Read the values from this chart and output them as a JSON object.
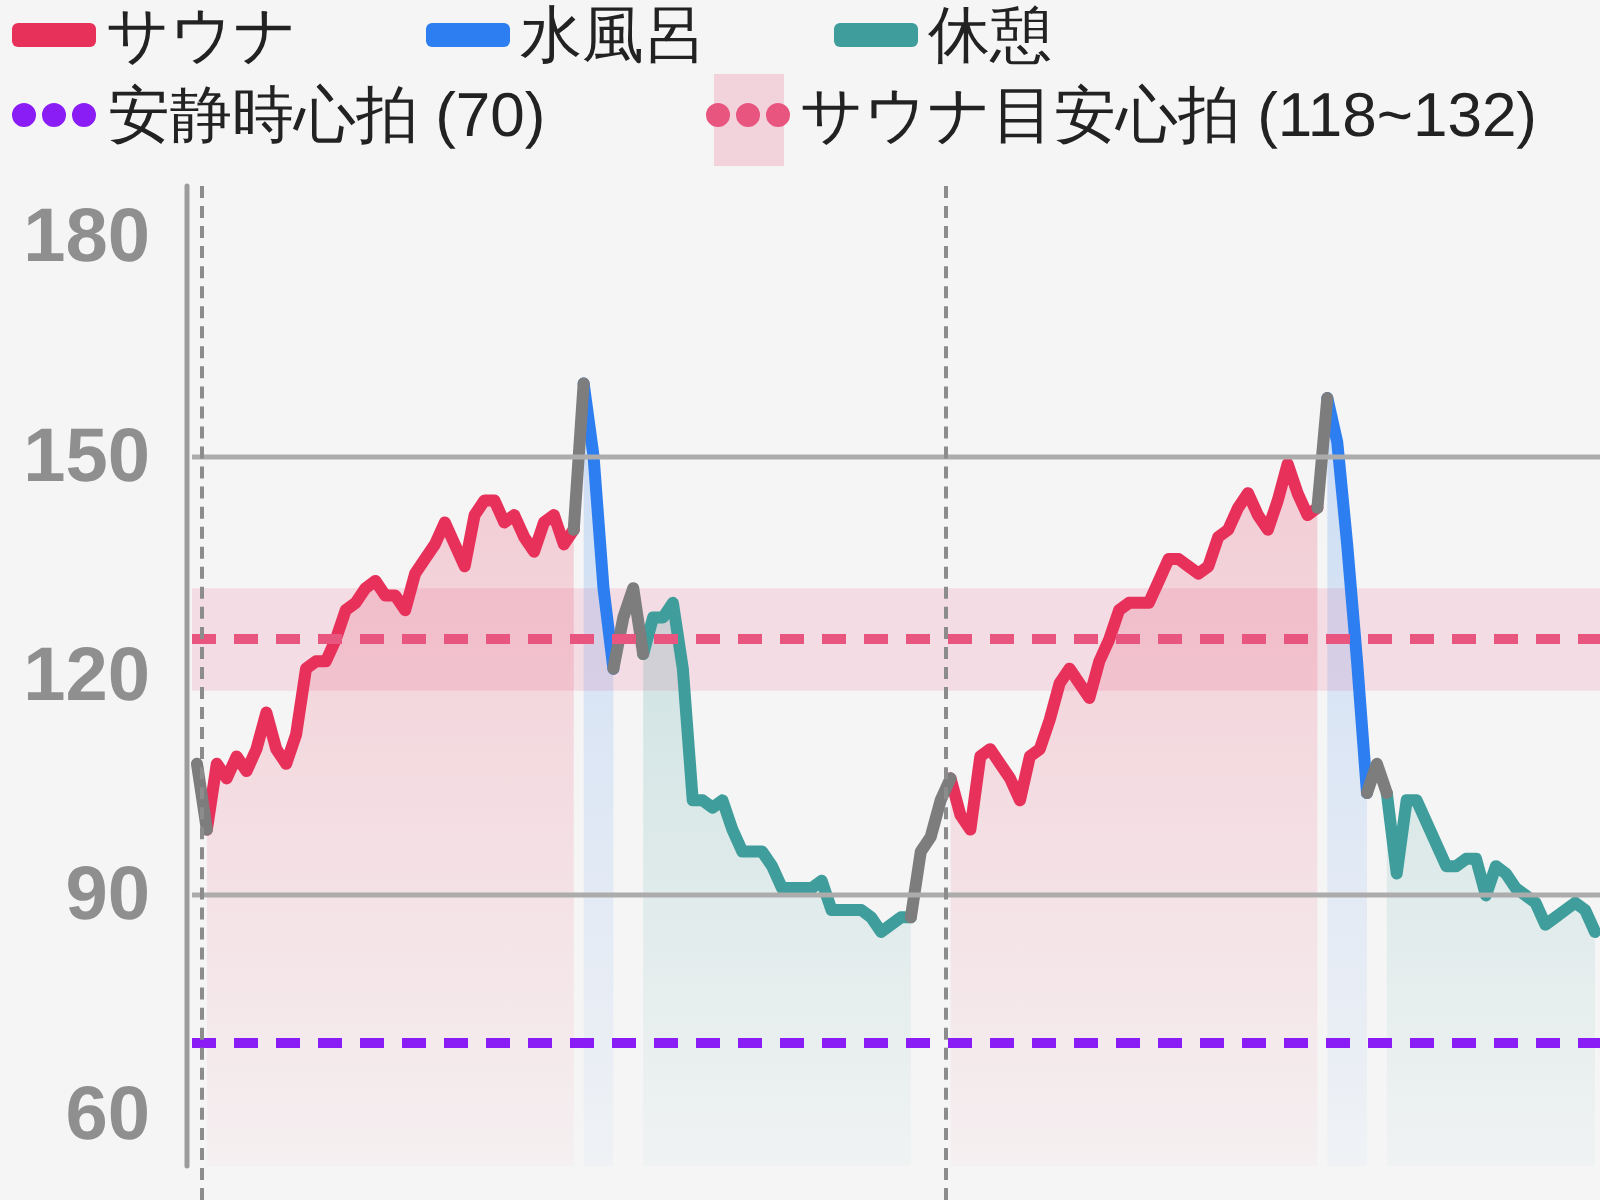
{
  "chart_data": {
    "type": "area",
    "categories": [
      null,
      null,
      null,
      null,
      null,
      null,
      null,
      null,
      null,
      null,
      null,
      null,
      null,
      null,
      null,
      null,
      null,
      null,
      null,
      null,
      null,
      null,
      null,
      null,
      null,
      null,
      null,
      null,
      null,
      null,
      null,
      null,
      null,
      null,
      null,
      null,
      null,
      null,
      null,
      null,
      null,
      null,
      null,
      null,
      null,
      null,
      null,
      null,
      null,
      null,
      null,
      null,
      null,
      null,
      null,
      null,
      null,
      null,
      null,
      null,
      null,
      null,
      null,
      null,
      null,
      null,
      null,
      null,
      null,
      null,
      null,
      null,
      null,
      null,
      null,
      null,
      null,
      null,
      null,
      null,
      null,
      null,
      null,
      null,
      null,
      null,
      null,
      null,
      null,
      null,
      null,
      null,
      null,
      null,
      null,
      null,
      null,
      null,
      null,
      null,
      null,
      null,
      null,
      null,
      null,
      null,
      null,
      null,
      null,
      null,
      null,
      null,
      null,
      null,
      null,
      null,
      null,
      null,
      null,
      null,
      null,
      null,
      null,
      null,
      null,
      null,
      null,
      null,
      null,
      null,
      null,
      null,
      null,
      null,
      null,
      null,
      null,
      null,
      null,
      null,
      null,
      null
    ],
    "series": [
      {
        "name": "サウナ",
        "color": "#e8315a",
        "type": "area",
        "values": [
          null,
          99,
          108,
          106,
          109,
          107,
          110,
          115,
          110,
          108,
          112,
          121,
          122,
          122,
          125,
          129,
          130,
          132,
          133,
          131,
          131,
          129,
          134,
          136,
          138,
          141,
          138,
          135,
          142,
          144,
          144,
          141,
          142,
          139,
          137,
          141,
          142,
          138,
          140,
          null,
          null,
          null,
          null,
          null,
          null,
          null,
          null,
          null,
          null,
          null,
          null,
          null,
          null,
          null,
          null,
          null,
          null,
          null,
          null,
          null,
          null,
          null,
          null,
          null,
          null,
          null,
          null,
          null,
          null,
          null,
          null,
          null,
          null,
          null,
          null,
          null,
          106,
          101,
          99,
          109,
          110,
          108,
          106,
          103,
          109,
          110,
          114,
          119,
          121,
          119,
          117,
          122,
          125,
          129,
          130,
          130,
          130,
          133,
          136,
          136,
          135,
          134,
          135,
          139,
          140,
          143,
          145,
          142,
          140,
          144,
          149,
          145,
          142,
          143,
          null,
          null,
          null,
          null,
          null,
          null,
          null,
          null,
          null,
          null,
          null,
          null,
          null,
          null,
          null,
          null,
          null,
          null,
          null,
          null,
          null,
          null,
          null,
          null,
          null,
          null,
          null,
          null
        ]
      },
      {
        "name": "水風呂",
        "color": "#2d7ef0",
        "type": "area",
        "values": [
          null,
          null,
          null,
          null,
          null,
          null,
          null,
          null,
          null,
          null,
          null,
          null,
          null,
          null,
          null,
          null,
          null,
          null,
          null,
          null,
          null,
          null,
          null,
          null,
          null,
          null,
          null,
          null,
          null,
          null,
          null,
          null,
          null,
          null,
          null,
          null,
          null,
          null,
          null,
          160,
          150,
          132,
          121,
          null,
          null,
          null,
          null,
          null,
          null,
          null,
          null,
          null,
          null,
          null,
          null,
          null,
          null,
          null,
          null,
          null,
          null,
          null,
          null,
          null,
          null,
          null,
          null,
          null,
          null,
          null,
          null,
          null,
          null,
          null,
          null,
          null,
          null,
          null,
          null,
          null,
          null,
          null,
          null,
          null,
          null,
          null,
          null,
          null,
          null,
          null,
          null,
          null,
          null,
          null,
          null,
          null,
          null,
          null,
          null,
          null,
          null,
          null,
          null,
          null,
          null,
          null,
          null,
          null,
          null,
          null,
          null,
          null,
          null,
          null,
          158,
          152,
          138,
          122,
          104,
          null,
          null,
          null,
          null,
          null,
          null,
          null,
          null,
          null,
          null,
          null,
          null,
          null,
          null,
          null,
          null,
          null,
          null,
          null,
          null,
          null,
          null,
          null
        ]
      },
      {
        "name": "休憩",
        "color": "#3f9d9c",
        "type": "area",
        "values": [
          null,
          null,
          null,
          null,
          null,
          null,
          null,
          null,
          null,
          null,
          null,
          null,
          null,
          null,
          null,
          null,
          null,
          null,
          null,
          null,
          null,
          null,
          null,
          null,
          null,
          null,
          null,
          null,
          null,
          null,
          null,
          null,
          null,
          null,
          null,
          null,
          null,
          null,
          null,
          null,
          null,
          null,
          null,
          null,
          null,
          123,
          128,
          128,
          130,
          121,
          103,
          103,
          102,
          103,
          99,
          96,
          96,
          96,
          94,
          91,
          91,
          91,
          91,
          92,
          88,
          88,
          88,
          88,
          87,
          85,
          86,
          87,
          87,
          null,
          null,
          null,
          null,
          null,
          null,
          null,
          null,
          null,
          null,
          null,
          null,
          null,
          null,
          null,
          null,
          null,
          null,
          null,
          null,
          null,
          null,
          null,
          null,
          null,
          null,
          null,
          null,
          null,
          null,
          null,
          null,
          null,
          null,
          null,
          null,
          null,
          null,
          null,
          null,
          null,
          null,
          null,
          null,
          null,
          null,
          null,
          104,
          93,
          103,
          103,
          100,
          97,
          94,
          94,
          95,
          95,
          90,
          94,
          93,
          91,
          90,
          89,
          86,
          87,
          88,
          89,
          88,
          85
        ]
      },
      {
        "color": "#7d7d7d",
        "type": "line",
        "values": [
          108,
          99,
          null,
          null,
          null,
          null,
          null,
          null,
          null,
          null,
          null,
          null,
          null,
          null,
          null,
          null,
          null,
          null,
          null,
          null,
          null,
          null,
          null,
          null,
          null,
          null,
          null,
          null,
          null,
          null,
          null,
          null,
          null,
          null,
          null,
          null,
          null,
          null,
          140,
          160,
          null,
          null,
          121,
          128,
          132,
          123,
          null,
          null,
          null,
          null,
          null,
          null,
          null,
          null,
          null,
          null,
          null,
          null,
          null,
          null,
          null,
          null,
          null,
          null,
          null,
          null,
          null,
          null,
          null,
          null,
          null,
          null,
          87,
          96,
          98,
          103,
          106,
          null,
          null,
          null,
          null,
          null,
          null,
          null,
          null,
          null,
          null,
          null,
          null,
          null,
          null,
          null,
          null,
          null,
          null,
          null,
          null,
          null,
          null,
          null,
          null,
          null,
          null,
          null,
          null,
          null,
          null,
          null,
          null,
          null,
          null,
          null,
          null,
          143,
          158,
          null,
          null,
          null,
          104,
          108,
          104,
          null,
          null,
          null,
          null,
          null,
          null,
          null,
          null,
          null,
          null,
          null,
          null,
          null,
          null,
          null,
          null,
          null,
          null,
          null,
          null,
          null
        ]
      }
    ],
    "ylim": [
      53,
      187
    ],
    "yticks": [
      60,
      90,
      120,
      150,
      180
    ],
    "ref_lines": [
      {
        "axis": "y",
        "value": 150,
        "color": "#acacac",
        "line_style": "solid"
      },
      {
        "axis": "y",
        "value": 90,
        "color": "#acacac",
        "line_style": "solid"
      },
      {
        "axis": "y",
        "value": 125,
        "color": "#e8557f",
        "line_style": "dashed"
      },
      {
        "axis": "y",
        "value": 70,
        "label": "安静時心拍 (70)",
        "color": "#8a1df6",
        "line_style": "dashed"
      }
    ],
    "bands": [
      {
        "axis": "y",
        "from": 118,
        "to": 132,
        "label": "サウナ目安心拍 (118~132)",
        "color": "#f2d3dc"
      }
    ],
    "legend": "top left",
    "line_style": "solid",
    "tick_labels": "y"
  }
}
